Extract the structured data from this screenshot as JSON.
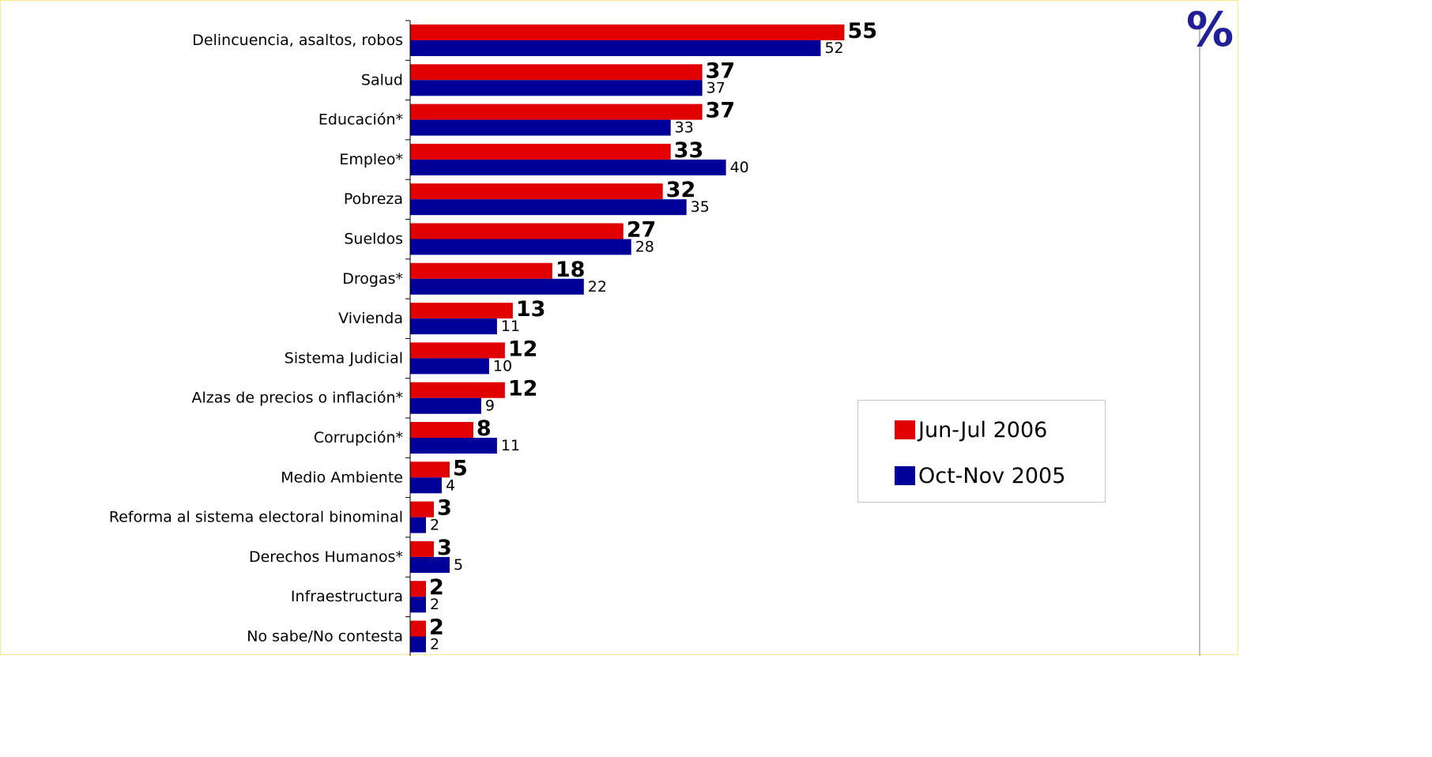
{
  "colors": {
    "primary": "#e10000",
    "secondary": "#000099",
    "unit": "#1f1f9a"
  },
  "chart_data": {
    "type": "bar",
    "orientation": "horizontal",
    "unit_label": "%",
    "categories": [
      "Delincuencia, asaltos, robos",
      "Salud",
      "Educación*",
      "Empleo*",
      "Pobreza",
      "Sueldos",
      "Drogas*",
      "Vivienda",
      "Sistema Judicial",
      "Alzas de precios o inflación*",
      "Corrupción*",
      "Medio Ambiente",
      "Reforma al sistema electoral binominal",
      "Derechos Humanos*",
      "Infraestructura",
      "No sabe/No contesta"
    ],
    "series": [
      {
        "name": "Jun-Jul 2006",
        "color": "#e10000",
        "values": [
          55,
          37,
          37,
          33,
          32,
          27,
          18,
          13,
          12,
          12,
          8,
          5,
          3,
          3,
          2,
          2
        ]
      },
      {
        "name": "Oct-Nov 2005",
        "color": "#000099",
        "values": [
          52,
          37,
          33,
          40,
          35,
          28,
          22,
          11,
          10,
          9,
          11,
          4,
          2,
          5,
          2,
          2
        ]
      }
    ],
    "xlim": [
      0,
      100
    ],
    "grid": false,
    "legend_position": "right"
  }
}
